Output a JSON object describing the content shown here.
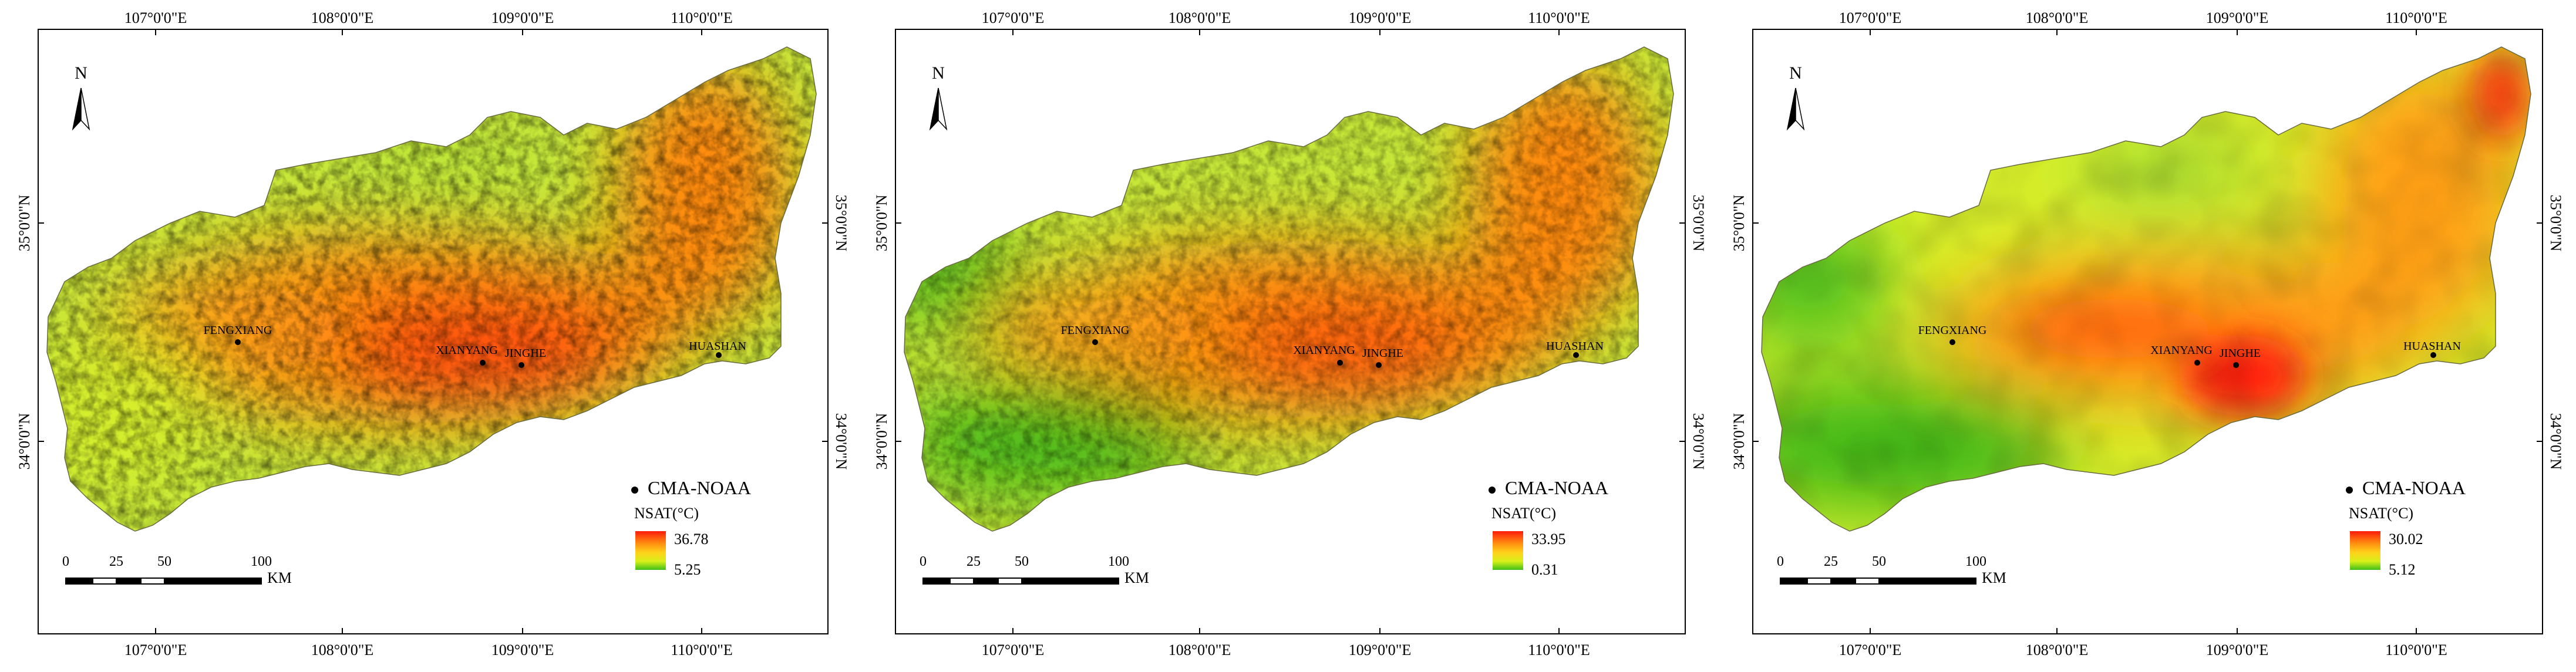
{
  "colors": {
    "high": "#ff1a0a",
    "mid_high": "#ff8a10",
    "mid": "#ffd21a",
    "mid_low": "#d8f01a",
    "low": "#3fbf18"
  },
  "axes": {
    "longitudes": [
      "107°0'0\"E",
      "108°0'0\"E",
      "109°0'0\"E",
      "110°0'0\"E"
    ],
    "latitudes": [
      "35°0'0\"N",
      "34°0'0\"N"
    ]
  },
  "north_arrow": {
    "letter": "N"
  },
  "cities": [
    "FENGXIANG",
    "XIANYANG",
    "JINGHE",
    "HUASHAN"
  ],
  "legend": {
    "station_label": "CMA-NOAA",
    "title": "NSAT(°C)"
  },
  "scale_bar": {
    "ticks": [
      "0",
      "25",
      "50",
      "100"
    ],
    "unit": "KM"
  },
  "panels": [
    {
      "max": "36.78",
      "min": "5.25",
      "style": "noisy-a"
    },
    {
      "max": "33.95",
      "min": "0.31",
      "style": "noisy-b"
    },
    {
      "max": "30.02",
      "min": "5.12",
      "style": "smooth"
    }
  ]
}
